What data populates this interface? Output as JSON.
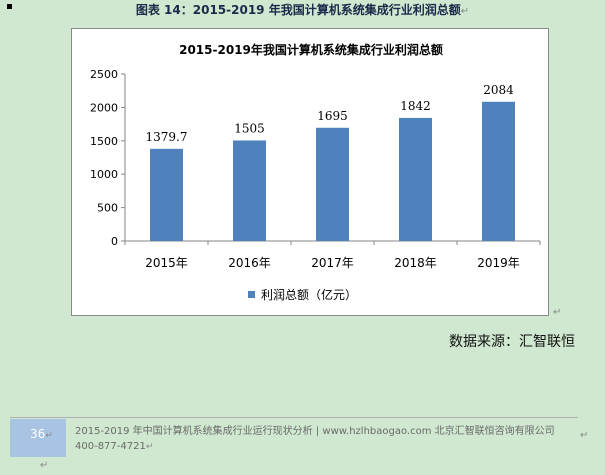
{
  "caption": {
    "text": "图表 14：2015-2019 年我国计算机系统集成行业利润总额",
    "return_mark": "↵"
  },
  "chart_data": {
    "type": "bar",
    "title": "2015-2019年我国计算机系统集成行业利润总额",
    "categories": [
      "2015年",
      "2016年",
      "2017年",
      "2018年",
      "2019年"
    ],
    "series": [
      {
        "name": "利润总额（亿元）",
        "values": [
          1379.7,
          1505,
          1695,
          1842,
          2084
        ],
        "labels": [
          "1379.7",
          "1505",
          "1695",
          "1842",
          "2084"
        ],
        "color": "#4f81bd"
      }
    ],
    "ylim": [
      0,
      2500
    ],
    "yticks": [
      0,
      500,
      1000,
      1500,
      2000,
      2500
    ],
    "legend_position": "bottom",
    "grid": false
  },
  "chart_end_mark": "↵",
  "source": "数据来源：汇智联恒",
  "footer": {
    "page_number": "36",
    "page_return": "↵",
    "text": "2015-2019 年中国计算机系统集成行业运行现状分析 | www.hzlhbaogao.com 北京汇智联恒咨询有限公司  400-877-4721",
    "return_mark": "↵",
    "side_return": "↵",
    "bottom_return": "↵"
  }
}
